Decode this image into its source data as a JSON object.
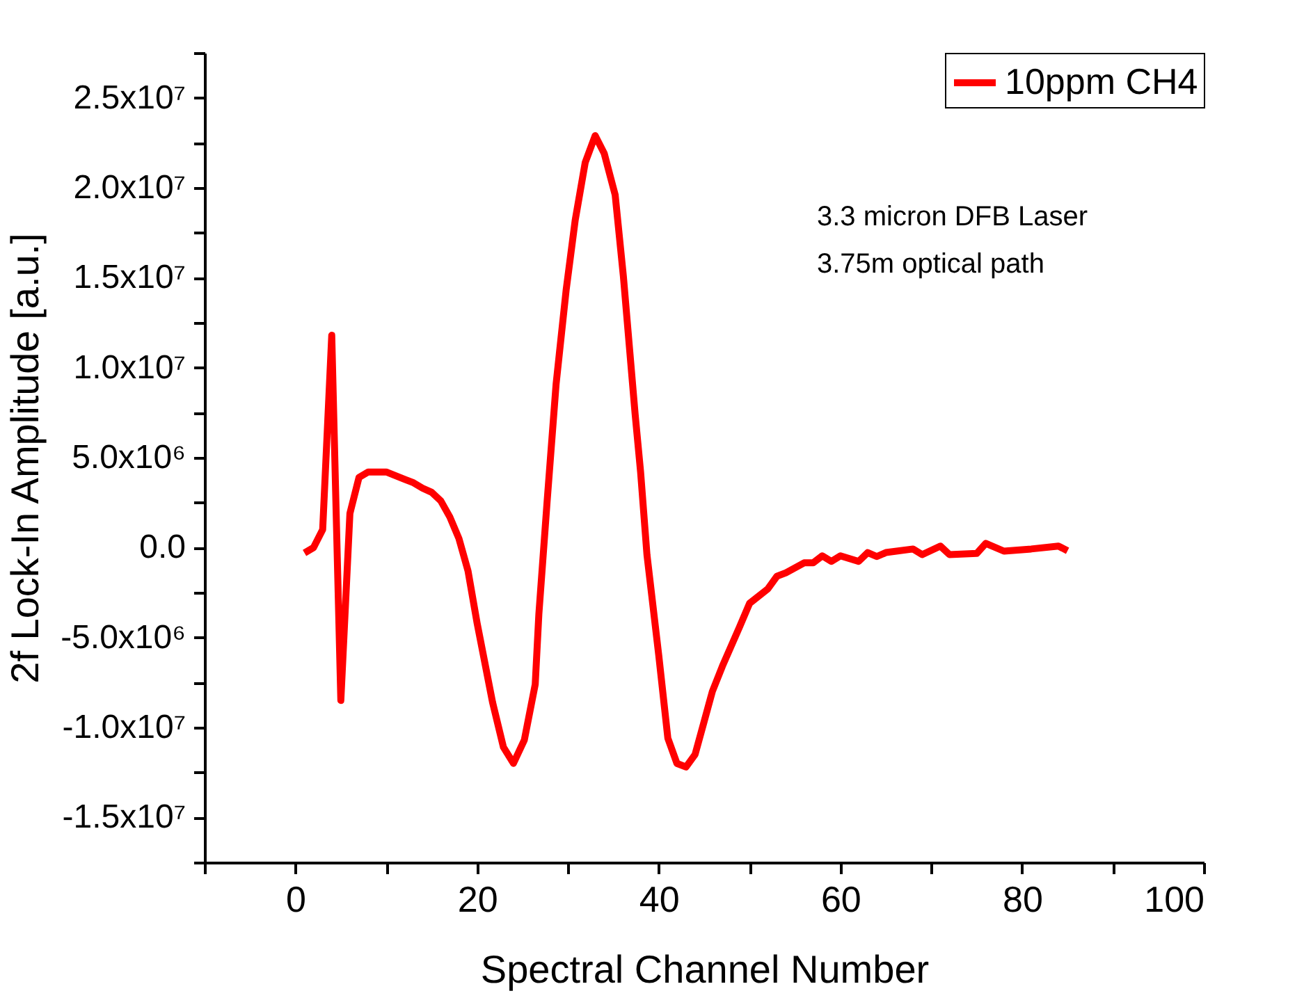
{
  "chart_data": {
    "type": "line",
    "xlabel": "Spectral Channel Number",
    "ylabel": "2f Lock-In Amplitude [a.u.]",
    "annotations": [
      "3.3 micron DFB Laser",
      "3.75m optical path"
    ],
    "xlim": [
      -10,
      100
    ],
    "xticks": [
      {
        "value": -10,
        "label": null
      },
      0,
      {
        "value": 10,
        "label": null
      },
      20,
      {
        "value": 30,
        "label": null
      },
      40,
      {
        "value": 50,
        "label": null
      },
      60,
      {
        "value": 70,
        "label": null
      },
      80,
      {
        "value": 90,
        "label": null
      },
      100
    ],
    "ylim": [
      -17500000,
      27500000
    ],
    "yticks": [
      {
        "value": -17500000,
        "label": null
      },
      {
        "value": -15000000,
        "label": "-1.5x10⁷"
      },
      {
        "value": -12500000,
        "label": null
      },
      {
        "value": -10000000,
        "label": "-1.0x10⁷"
      },
      {
        "value": -7500000,
        "label": null
      },
      {
        "value": -5000000,
        "label": "-5.0x10⁶"
      },
      {
        "value": -2500000,
        "label": null
      },
      {
        "value": 0,
        "label": "0.0"
      },
      {
        "value": 2500000,
        "label": null
      },
      {
        "value": 5000000,
        "label": "5.0x10⁶"
      },
      {
        "value": 7500000,
        "label": null
      },
      {
        "value": 10000000,
        "label": "1.0x10⁷"
      },
      {
        "value": 12500000,
        "label": null
      },
      {
        "value": 15000000,
        "label": "1.5x10⁷"
      },
      {
        "value": 17500000,
        "label": null
      },
      {
        "value": 20000000,
        "label": "2.0x10⁷"
      },
      {
        "value": 22500000,
        "label": null
      },
      {
        "value": 25000000,
        "label": "2.5x10⁷"
      },
      {
        "value": 27500000,
        "label": null
      }
    ],
    "grid": false,
    "legend": "top right",
    "marker": "none",
    "line_style": "solid",
    "series": [
      {
        "name": "10ppm CH4",
        "color": "#ff0000",
        "x": [
          1,
          2,
          3,
          4,
          5,
          6,
          7,
          8,
          9,
          10,
          12,
          13,
          14,
          15,
          16,
          17,
          18,
          19,
          20,
          21.7,
          22.9,
          24,
          25.2,
          26.4,
          26.8,
          27.7,
          28.7,
          29.8,
          30.8,
          31.9,
          33,
          34,
          35.2,
          36.1,
          37.4,
          38,
          38.7,
          40,
          41,
          42,
          43,
          44,
          45.9,
          47,
          48.9,
          50,
          52,
          53,
          54,
          56,
          57,
          58,
          59,
          60,
          62,
          63,
          64,
          65,
          68,
          69,
          71,
          72,
          75,
          76,
          78,
          81,
          84,
          85
        ],
        "values": [
          -300000,
          0,
          1000000,
          11800000,
          -8500000,
          1900000,
          3900000,
          4200000,
          4200000,
          4200000,
          3800000,
          3600000,
          3300000,
          3070000,
          2600000,
          1700000,
          500000,
          -1300000,
          -4200000,
          -8600000,
          -11100000,
          -12000000,
          -10700000,
          -7600000,
          -3700000,
          2500000,
          9100000,
          14300000,
          18200000,
          21400000,
          22900000,
          21900000,
          19600000,
          15100000,
          7400000,
          4200000,
          -400000,
          -6000000,
          -10600000,
          -12000000,
          -12200000,
          -11500000,
          -8000000,
          -6600000,
          -4400000,
          -3100000,
          -2300000,
          -1600000,
          -1400000,
          -850000,
          -850000,
          -460000,
          -770000,
          -460000,
          -770000,
          -280000,
          -500000,
          -280000,
          -80000,
          -390000,
          80000,
          -390000,
          -330000,
          230000,
          -200000,
          -80000,
          80000,
          -180000
        ]
      }
    ]
  }
}
